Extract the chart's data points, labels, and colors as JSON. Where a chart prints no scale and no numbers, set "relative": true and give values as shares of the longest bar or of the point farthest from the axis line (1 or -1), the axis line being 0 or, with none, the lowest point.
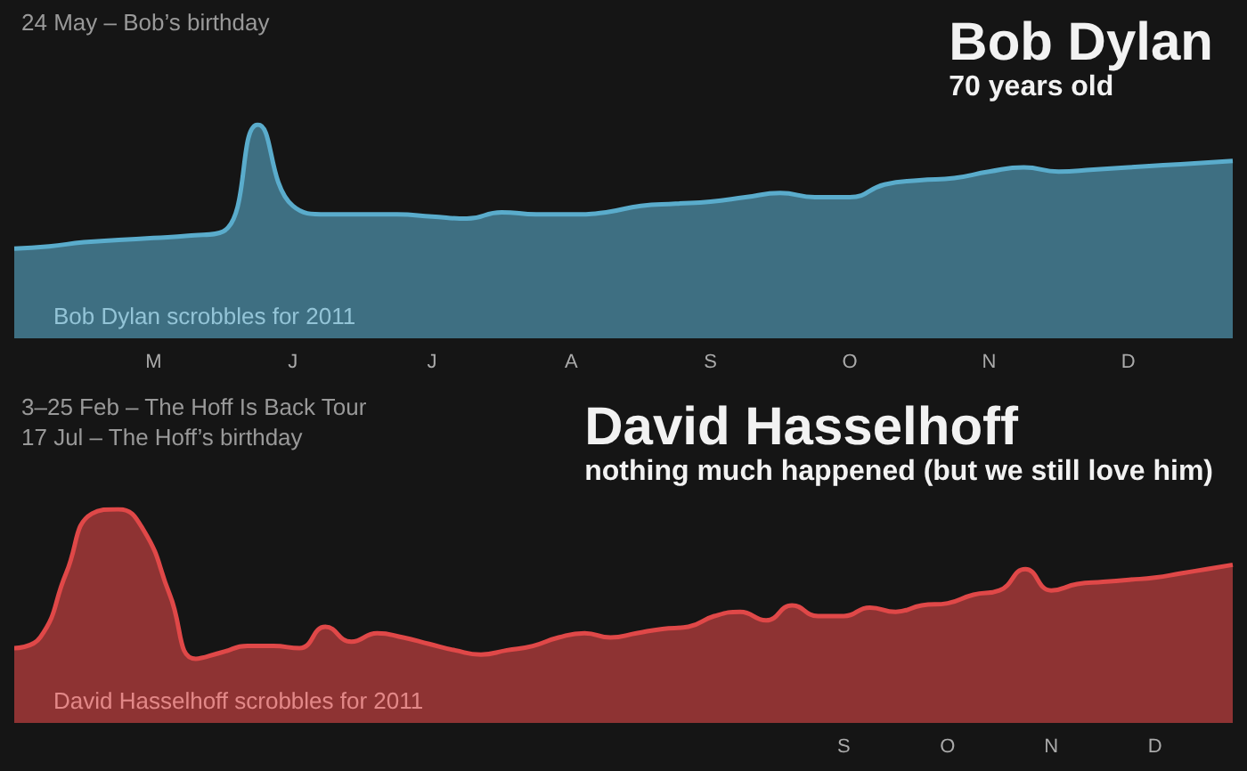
{
  "chart_data": [
    {
      "type": "area",
      "relative": true,
      "title": "Bob Dylan",
      "subtitle": "70 years old",
      "categories": [
        null,
        null,
        null,
        null,
        "M",
        null,
        null,
        null,
        "J",
        null,
        null,
        null,
        "J",
        null,
        null,
        null,
        "A",
        null,
        null,
        null,
        "S",
        null,
        null,
        null,
        "O",
        null,
        null,
        null,
        "N",
        null,
        null,
        null,
        "D",
        null,
        null,
        null
      ],
      "series": [
        {
          "color": "#5aaccc",
          "values": [
            0.42,
            0.43,
            0.45,
            0.46,
            0.47,
            0.48,
            0.5,
            1.0,
            0.62,
            0.58,
            0.58,
            0.58,
            0.57,
            0.56,
            0.59,
            0.58,
            0.58,
            0.59,
            0.62,
            0.63,
            0.64,
            0.66,
            0.68,
            0.66,
            0.66,
            0.72,
            0.74,
            0.75,
            0.78,
            0.8,
            0.78,
            0.79,
            0.8,
            0.81,
            0.82,
            0.83
          ]
        }
      ],
      "annotations": [
        "24 May – Bob’s birthday",
        "Bob Dylan scrobbles for 2011"
      ]
    },
    {
      "type": "area",
      "relative": true,
      "title": "David Hasselhoff",
      "subtitle": "nothing much happened (but we still love him)",
      "categories": [
        null,
        null,
        null,
        null,
        null,
        null,
        null,
        null,
        null,
        null,
        null,
        null,
        null,
        null,
        null,
        null,
        null,
        null,
        null,
        null,
        null,
        null,
        null,
        null,
        null,
        null,
        null,
        null,
        null,
        null,
        null,
        null,
        "S",
        null,
        null,
        null,
        "O",
        null,
        null,
        null,
        "N",
        null,
        null,
        null,
        "D",
        null,
        null,
        null
      ],
      "series": [
        {
          "color": "#e04848",
          "values": [
            0.35,
            0.4,
            0.7,
            0.98,
            1.0,
            0.9,
            0.6,
            0.3,
            0.33,
            0.36,
            0.36,
            0.35,
            0.45,
            0.38,
            0.42,
            0.4,
            0.37,
            0.34,
            0.32,
            0.34,
            0.36,
            0.4,
            0.42,
            0.4,
            0.42,
            0.44,
            0.45,
            0.5,
            0.52,
            0.48,
            0.55,
            0.5,
            0.5,
            0.54,
            0.52,
            0.55,
            0.56,
            0.6,
            0.62,
            0.72,
            0.62,
            0.65,
            0.66,
            0.67,
            0.68,
            0.7,
            0.72,
            0.74
          ]
        }
      ],
      "annotations": [
        "3–25 Feb – The Hoff Is Back Tour",
        "17 Jul – The Hoff’s birthday",
        "David Hasselhoff scrobbles for 2011"
      ]
    }
  ]
}
